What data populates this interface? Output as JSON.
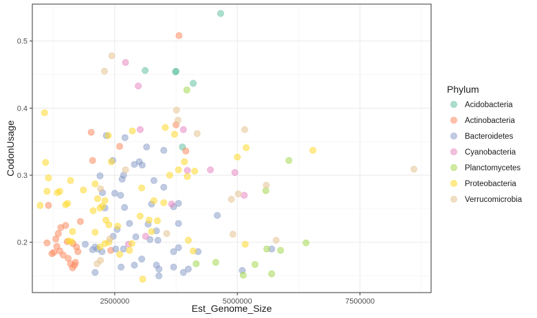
{
  "chart_data": {
    "type": "scatter",
    "xlabel": "Est_Genome_Size",
    "ylabel": "CodonUsage",
    "xlim": [
      820000,
      8950000
    ],
    "ylim": [
      0.125,
      0.555
    ],
    "x_ticks": [
      2500000,
      5000000,
      7500000
    ],
    "x_tick_labels": [
      "2500000",
      "5000000",
      "7500000"
    ],
    "y_ticks": [
      0.2,
      0.3,
      0.4,
      0.5
    ],
    "y_tick_labels": [
      "0.2",
      "0.3",
      "0.4",
      "0.5"
    ],
    "grid": true,
    "legend_title": "Phylum",
    "legend_position": "right",
    "series": [
      {
        "name": "Acidobacteria",
        "color": "#66c2a5",
        "points": [
          [
            4660000,
            0.541
          ],
          [
            3120000,
            0.456
          ],
          [
            3750000,
            0.455
          ],
          [
            3740000,
            0.454
          ],
          [
            4100000,
            0.437
          ],
          [
            3880000,
            0.342
          ]
        ]
      },
      {
        "name": "Actinobacteria",
        "color": "#fc8d62",
        "points": [
          [
            3810000,
            0.508
          ],
          [
            3750000,
            0.375
          ],
          [
            2020000,
            0.364
          ],
          [
            2600000,
            0.343
          ],
          [
            3950000,
            0.336
          ],
          [
            2050000,
            0.322
          ],
          [
            1150000,
            0.255
          ],
          [
            1120000,
            0.199
          ],
          [
            1220000,
            0.183
          ],
          [
            1300000,
            0.205
          ],
          [
            1350000,
            0.213
          ],
          [
            1400000,
            0.222
          ],
          [
            1320000,
            0.194
          ],
          [
            1380000,
            0.187
          ],
          [
            1450000,
            0.181
          ],
          [
            1500000,
            0.225
          ],
          [
            1550000,
            0.176
          ],
          [
            1600000,
            0.168
          ],
          [
            1640000,
            0.162
          ],
          [
            1700000,
            0.17
          ],
          [
            1750000,
            0.186
          ],
          [
            1800000,
            0.231
          ],
          [
            1530000,
            0.201
          ],
          [
            1260000,
            0.185
          ],
          [
            1650000,
            0.198
          ],
          [
            1720000,
            0.193
          ],
          [
            1680000,
            0.166
          ],
          [
            2420000,
            0.188
          ]
        ]
      },
      {
        "name": "Bacteroidetes",
        "color": "#8da0cb",
        "points": [
          [
            2330000,
            0.359
          ],
          [
            2710000,
            0.356
          ],
          [
            3150000,
            0.342
          ],
          [
            3500000,
            0.337
          ],
          [
            3000000,
            0.32
          ],
          [
            3060000,
            0.315
          ],
          [
            2900000,
            0.316
          ],
          [
            2460000,
            0.322
          ],
          [
            2650000,
            0.294
          ],
          [
            2680000,
            0.3
          ],
          [
            2200000,
            0.299
          ],
          [
            2250000,
            0.274
          ],
          [
            2500000,
            0.273
          ],
          [
            2620000,
            0.27
          ],
          [
            3300000,
            0.292
          ],
          [
            3500000,
            0.282
          ],
          [
            3800000,
            0.258
          ],
          [
            3250000,
            0.257
          ],
          [
            3700000,
            0.253
          ],
          [
            2700000,
            0.252
          ],
          [
            2300000,
            0.251
          ],
          [
            3180000,
            0.227
          ],
          [
            2800000,
            0.228
          ],
          [
            2550000,
            0.219
          ],
          [
            2470000,
            0.209
          ],
          [
            2930000,
            0.208
          ],
          [
            3350000,
            0.217
          ],
          [
            3800000,
            0.228
          ],
          [
            4590000,
            0.24
          ],
          [
            3220000,
            0.204
          ],
          [
            3380000,
            0.203
          ],
          [
            2520000,
            0.19
          ],
          [
            2680000,
            0.19
          ],
          [
            2240000,
            0.186
          ],
          [
            2100000,
            0.193
          ],
          [
            1900000,
            0.197
          ],
          [
            2050000,
            0.189
          ],
          [
            2150000,
            0.19
          ],
          [
            3700000,
            0.186
          ],
          [
            4200000,
            0.186
          ],
          [
            3050000,
            0.175
          ],
          [
            3350000,
            0.166
          ],
          [
            2900000,
            0.166
          ],
          [
            2630000,
            0.163
          ],
          [
            2100000,
            0.155
          ],
          [
            3400000,
            0.16
          ],
          [
            3700000,
            0.163
          ],
          [
            3900000,
            0.155
          ],
          [
            4000000,
            0.16
          ],
          [
            3800000,
            0.192
          ],
          [
            5100000,
            0.158
          ],
          [
            5700000,
            0.19
          ],
          [
            3400000,
            0.15
          ]
        ]
      },
      {
        "name": "Cyanobacteria",
        "color": "#e78ac3",
        "points": [
          [
            2720000,
            0.468
          ],
          [
            2980000,
            0.433
          ],
          [
            3900000,
            0.368
          ],
          [
            3020000,
            0.368
          ],
          [
            4450000,
            0.308
          ],
          [
            4950000,
            0.304
          ],
          [
            3980000,
            0.307
          ],
          [
            5140000,
            0.27
          ],
          [
            3660000,
            0.257
          ],
          [
            3130000,
            0.209
          ],
          [
            2780000,
            0.197
          ]
        ]
      },
      {
        "name": "Planctomycetes",
        "color": "#a6d854",
        "points": [
          [
            3970000,
            0.427
          ],
          [
            6050000,
            0.322
          ],
          [
            5580000,
            0.277
          ],
          [
            5600000,
            0.19
          ],
          [
            5700000,
            0.153
          ],
          [
            5880000,
            0.188
          ],
          [
            6400000,
            0.199
          ],
          [
            5360000,
            0.167
          ],
          [
            4560000,
            0.17
          ],
          [
            4160000,
            0.168
          ],
          [
            5120000,
            0.151
          ]
        ]
      },
      {
        "name": "Proteobacteria",
        "color": "#ffd92f",
        "points": [
          [
            1070000,
            0.393
          ],
          [
            1090000,
            0.319
          ],
          [
            1150000,
            0.296
          ],
          [
            1120000,
            0.276
          ],
          [
            980000,
            0.255
          ],
          [
            1330000,
            0.274
          ],
          [
            1380000,
            0.276
          ],
          [
            1500000,
            0.256
          ],
          [
            1540000,
            0.258
          ],
          [
            1600000,
            0.292
          ],
          [
            1640000,
            0.216
          ],
          [
            1860000,
            0.278
          ],
          [
            2100000,
            0.287
          ],
          [
            2060000,
            0.247
          ],
          [
            2150000,
            0.265
          ],
          [
            2200000,
            0.251
          ],
          [
            2250000,
            0.254
          ],
          [
            2300000,
            0.262
          ],
          [
            2320000,
            0.233
          ],
          [
            2380000,
            0.226
          ],
          [
            2430000,
            0.32
          ],
          [
            2370000,
            0.359
          ],
          [
            2100000,
            0.215
          ],
          [
            2200000,
            0.193
          ],
          [
            2300000,
            0.198
          ],
          [
            2600000,
            0.182
          ],
          [
            2560000,
            0.224
          ],
          [
            2800000,
            0.188
          ],
          [
            2850000,
            0.198
          ],
          [
            2860000,
            0.366
          ],
          [
            3050000,
            0.281
          ],
          [
            3020000,
            0.239
          ],
          [
            3200000,
            0.233
          ],
          [
            3250000,
            0.216
          ],
          [
            3300000,
            0.262
          ],
          [
            3370000,
            0.232
          ],
          [
            3500000,
            0.259
          ],
          [
            3530000,
            0.371
          ],
          [
            3620000,
            0.3
          ],
          [
            3720000,
            0.361
          ],
          [
            3800000,
            0.308
          ],
          [
            3920000,
            0.32
          ],
          [
            3980000,
            0.298
          ],
          [
            4130000,
            0.306
          ],
          [
            4000000,
            0.203
          ],
          [
            4100000,
            0.187
          ],
          [
            5000000,
            0.327
          ],
          [
            5180000,
            0.341
          ],
          [
            5160000,
            0.197
          ],
          [
            6540000,
            0.337
          ],
          [
            3070000,
            0.145
          ],
          [
            2380000,
            0.2
          ],
          [
            1560000,
            0.202
          ],
          [
            1620000,
            0.201
          ]
        ]
      },
      {
        "name": "Verrucomicrobia",
        "color": "#e5c494",
        "points": [
          [
            2440000,
            0.478
          ],
          [
            2290000,
            0.455
          ],
          [
            3760000,
            0.397
          ],
          [
            3790000,
            0.382
          ],
          [
            4180000,
            0.362
          ],
          [
            5150000,
            0.368
          ],
          [
            5590000,
            0.285
          ],
          [
            5020000,
            0.272
          ],
          [
            4880000,
            0.264
          ],
          [
            4910000,
            0.212
          ],
          [
            5790000,
            0.203
          ],
          [
            8600000,
            0.309
          ],
          [
            2720000,
            0.308
          ],
          [
            2210000,
            0.28
          ],
          [
            2400000,
            0.205
          ],
          [
            3560000,
            0.213
          ],
          [
            2210000,
            0.173
          ],
          [
            2140000,
            0.168
          ]
        ]
      }
    ]
  }
}
